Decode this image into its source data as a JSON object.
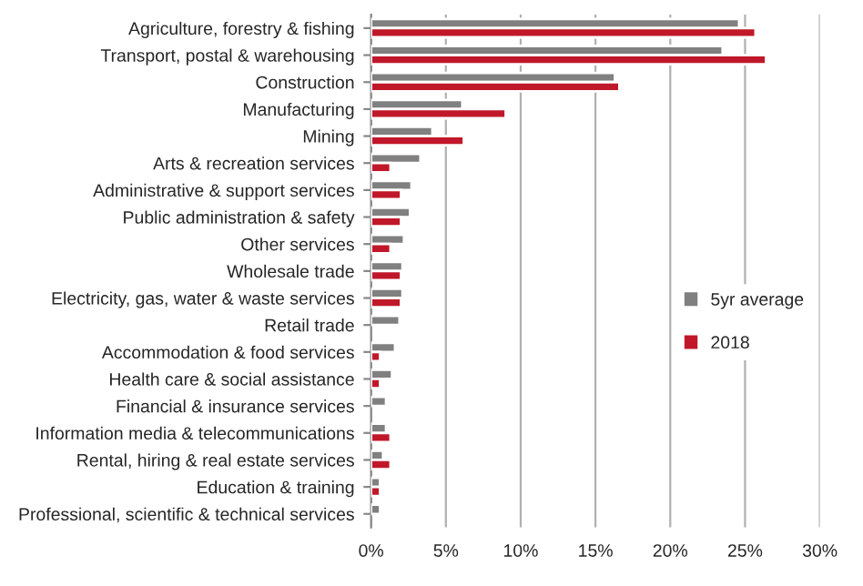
{
  "chart_data": {
    "type": "bar",
    "orientation": "horizontal",
    "categories": [
      "Agriculture, forestry & fishing",
      "Transport, postal & warehousing",
      "Construction",
      "Manufacturing",
      "Mining",
      "Arts & recreation services",
      "Administrative & support services",
      "Public administration & safety",
      "Other services",
      "Wholesale trade",
      "Electricity, gas, water & waste services",
      "Retail trade",
      "Accommodation & food services",
      "Health care & social assistance",
      "Financial & insurance services",
      "Information media & telecommunications",
      "Rental, hiring & real estate services",
      "Education & training",
      "Professional, scientific & technical services"
    ],
    "series": [
      {
        "name": "5yr average",
        "color": "#808080",
        "values": [
          24.6,
          23.5,
          16.3,
          6.1,
          4.1,
          3.3,
          2.7,
          2.6,
          2.2,
          2.1,
          2.1,
          1.9,
          1.6,
          1.4,
          1.0,
          1.0,
          0.8,
          0.6,
          0.6
        ]
      },
      {
        "name": "2018",
        "color": "#c0182a",
        "values": [
          25.7,
          26.4,
          16.6,
          9.0,
          6.2,
          1.3,
          2.0,
          2.0,
          1.3,
          2.0,
          2.0,
          null,
          0.6,
          0.6,
          null,
          1.3,
          1.3,
          0.6,
          null
        ]
      }
    ],
    "xlim": [
      0,
      30
    ],
    "xticks": [
      {
        "value": 0,
        "label": "0%"
      },
      {
        "value": 5,
        "label": "5%"
      },
      {
        "value": 10,
        "label": "10%"
      },
      {
        "value": 15,
        "label": "15%"
      },
      {
        "value": 20,
        "label": "20%"
      },
      {
        "value": 25,
        "label": "25%"
      },
      {
        "value": 30,
        "label": "30%"
      }
    ],
    "grid": "x",
    "legend": "right"
  }
}
